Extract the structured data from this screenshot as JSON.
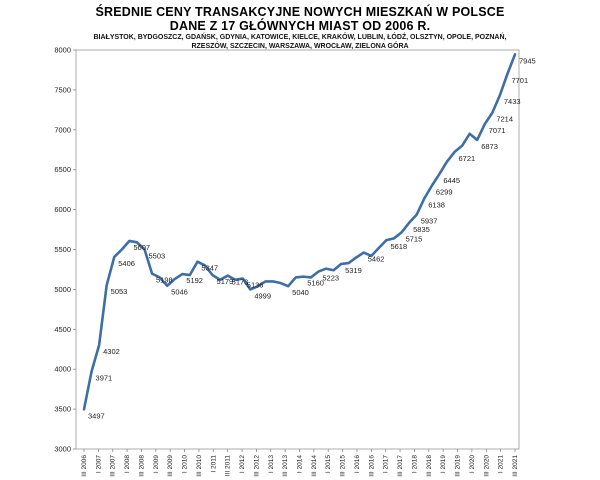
{
  "chart_data": {
    "type": "line",
    "title": "ŚREDNIE CENY TRANSAKCYJNE NOWYCH MIESZKAŃ W POLSCE",
    "subtitle": "DANE Z 17 GŁÓWNYCH MIAST OD 2006 R.",
    "cities_line1": "BIAŁYSTOK, BYDGOSZCZ, GDAŃSK, GDYNIA, KATOWICE, KIELCE, KRAKÓW, LUBLIN, ŁÓDŹ, OLSZTYN, OPOLE, POZNAŃ,",
    "cities_line2": "RZESZÓW, SZCZECIN, WARSZAWA, WROCŁAW, ZIELONA GÓRA",
    "xlabel": "",
    "ylabel": "",
    "ylim": [
      3000,
      8000
    ],
    "y_ticks": [
      3000,
      3500,
      4000,
      4500,
      5000,
      5500,
      6000,
      6500,
      7000,
      7500,
      8000
    ],
    "grid": false,
    "line_color": "#3f6ea6",
    "x_tick_labels": [
      "III 2006",
      "I 2007",
      "III 2007",
      "I 2008",
      "III 2008",
      "I 2009",
      "III 2009",
      "I 2010",
      "III 2010",
      "I 2011",
      "III 2011",
      "I 2012",
      "III 2012",
      "I 2013",
      "III 2013",
      "I 2014",
      "III 2014",
      "I 2015",
      "III 2015",
      "I 2016",
      "III 2016",
      "I 2017",
      "III 2017",
      "I 2018",
      "III 2018",
      "I 2019",
      "III 2019",
      "I 2020",
      "III 2020",
      "I 2021",
      "III 2021"
    ],
    "values": [
      3497,
      3971,
      4302,
      5053,
      5406,
      5500,
      5607,
      5590,
      5503,
      5198,
      5150,
      5046,
      5130,
      5192,
      5180,
      5347,
      5300,
      5179,
      5120,
      5173,
      5120,
      5136,
      4999,
      5040,
      5100,
      5100,
      5080,
      5040,
      5150,
      5160,
      5150,
      5223,
      5260,
      5240,
      5319,
      5330,
      5400,
      5462,
      5420,
      5520,
      5618,
      5640,
      5715,
      5835,
      5937,
      6138,
      6299,
      6445,
      6600,
      6721,
      6800,
      6950,
      6873,
      7071,
      7214,
      7433,
      7701,
      7945
    ],
    "labeled_points": [
      {
        "i": 0,
        "label": "3497"
      },
      {
        "i": 1,
        "label": "3971"
      },
      {
        "i": 2,
        "label": "4302"
      },
      {
        "i": 3,
        "label": "5053"
      },
      {
        "i": 4,
        "label": "5406"
      },
      {
        "i": 6,
        "label": "5607"
      },
      {
        "i": 8,
        "label": "5503"
      },
      {
        "i": 9,
        "label": "5198"
      },
      {
        "i": 11,
        "label": "5046"
      },
      {
        "i": 13,
        "label": "5192"
      },
      {
        "i": 15,
        "label": "5347"
      },
      {
        "i": 17,
        "label": "5179"
      },
      {
        "i": 19,
        "label": "5173"
      },
      {
        "i": 21,
        "label": "5136"
      },
      {
        "i": 22,
        "label": "4999"
      },
      {
        "i": 27,
        "label": "5040"
      },
      {
        "i": 29,
        "label": "5160"
      },
      {
        "i": 31,
        "label": "5223"
      },
      {
        "i": 34,
        "label": "5319"
      },
      {
        "i": 37,
        "label": "5462"
      },
      {
        "i": 40,
        "label": "5618"
      },
      {
        "i": 42,
        "label": "5715"
      },
      {
        "i": 43,
        "label": "5835"
      },
      {
        "i": 44,
        "label": "5937"
      },
      {
        "i": 45,
        "label": "6138"
      },
      {
        "i": 46,
        "label": "6299"
      },
      {
        "i": 47,
        "label": "6445"
      },
      {
        "i": 49,
        "label": "6721"
      },
      {
        "i": 52,
        "label": "6873"
      },
      {
        "i": 53,
        "label": "7071"
      },
      {
        "i": 54,
        "label": "7214"
      },
      {
        "i": 55,
        "label": "7433"
      },
      {
        "i": 56,
        "label": "7701"
      },
      {
        "i": 57,
        "label": "7945"
      }
    ]
  }
}
